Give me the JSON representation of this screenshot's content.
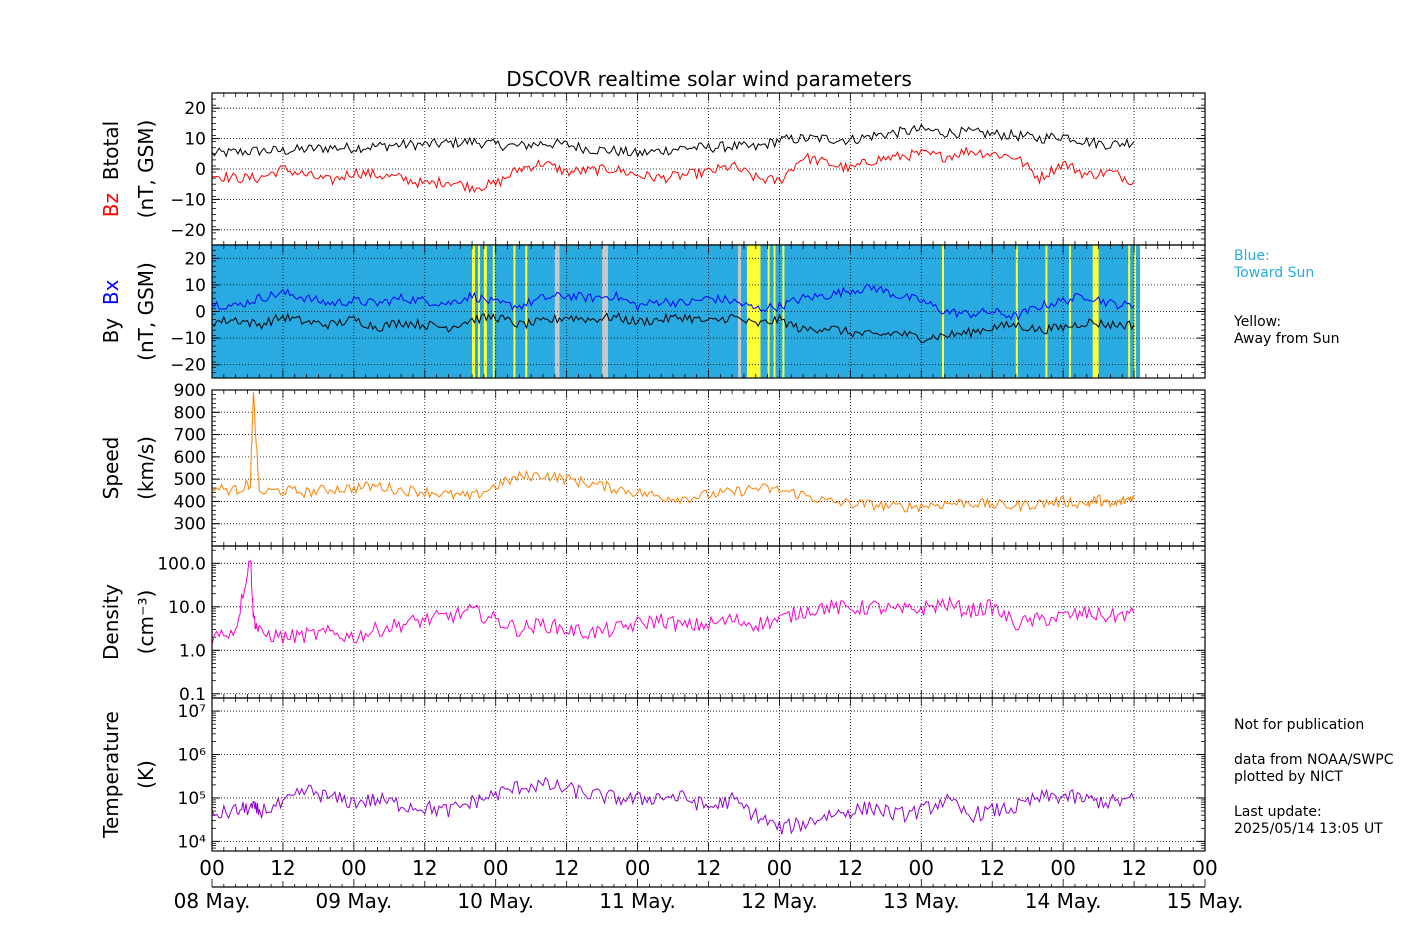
{
  "chart_data": {
    "title": "DSCOVR realtime solar wind parameters",
    "type": "line",
    "x_axis": {
      "tick_hours": [
        "00",
        "12",
        "00",
        "12",
        "00",
        "12",
        "00",
        "12",
        "00",
        "12",
        "00",
        "12",
        "00",
        "12",
        "00"
      ],
      "day_labels": [
        "08 May.",
        "09 May.",
        "10 May.",
        "11 May.",
        "12 May.",
        "13 May.",
        "14 May.",
        "15 May."
      ],
      "range_hours": [
        0,
        168
      ],
      "grid": true
    },
    "panels": [
      {
        "id": "bz_btotal",
        "ylabel_parts": [
          {
            "text": "Bz",
            "color": "#ff0000"
          },
          {
            "text": "Btotal",
            "color": "#000000"
          }
        ],
        "ylabel_units": "(nT, GSM)",
        "ylim": [
          -25,
          25
        ],
        "yticks": [
          20,
          10,
          0,
          -10,
          -20
        ],
        "ytick_labels": [
          "20",
          "10",
          "0",
          "−10",
          "−20"
        ],
        "series": [
          {
            "name": "Btotal",
            "color": "#000000",
            "x": [
              0,
              4,
              8,
              12,
              16,
              20,
              24,
              28,
              32,
              36,
              40,
              44,
              48,
              52,
              56,
              60,
              64,
              68,
              72,
              76,
              80,
              84,
              88,
              92,
              96,
              100,
              104,
              108,
              112,
              116,
              120,
              124,
              128,
              132,
              136,
              140,
              144,
              148,
              152,
              156
            ],
            "y": [
              5,
              5.5,
              6,
              6,
              6.5,
              7,
              7,
              7.5,
              8,
              8,
              8.5,
              9,
              8,
              7.5,
              8.5,
              8,
              6.5,
              6,
              5,
              6,
              7,
              7,
              7.5,
              7,
              9.5,
              10,
              10,
              9.5,
              11,
              12,
              13,
              12,
              12,
              11.5,
              11,
              10,
              11,
              9,
              8,
              9
            ]
          },
          {
            "name": "Bz",
            "color": "#ff0000",
            "x": [
              0,
              4,
              8,
              12,
              16,
              20,
              24,
              28,
              32,
              36,
              40,
              44,
              48,
              52,
              56,
              60,
              64,
              68,
              72,
              76,
              80,
              84,
              88,
              92,
              96,
              100,
              104,
              108,
              112,
              116,
              120,
              124,
              128,
              132,
              136,
              140,
              144,
              148,
              152,
              156
            ],
            "y": [
              -2,
              -3,
              -3,
              0,
              -2,
              -4,
              -1,
              -2,
              -3,
              -5,
              -4,
              -6,
              -5,
              0,
              2,
              -1,
              -0.5,
              0,
              -2,
              -3,
              -2,
              -1,
              1,
              -3,
              -4,
              4,
              2,
              0,
              3,
              4,
              5,
              4,
              6,
              5,
              4,
              -3,
              2,
              -2,
              -1,
              -4
            ]
          }
        ]
      },
      {
        "id": "by_bx",
        "ylabel_parts": [
          {
            "text": "By",
            "color": "#000000"
          },
          {
            "text": "Bx",
            "color": "#0000ff"
          }
        ],
        "ylabel_units": "(nT, GSM)",
        "ylim": [
          -25,
          25
        ],
        "yticks": [
          20,
          10,
          0,
          -10,
          -20
        ],
        "ytick_labels": [
          "20",
          "10",
          "0",
          "−10",
          "−20"
        ],
        "background": {
          "blue_color": "#29abe2",
          "yellow_color": "#ffff33",
          "gray_color": "#c8c8c8",
          "blue_range_hours": [
            0,
            157
          ],
          "yellow_bands_hours": [
            [
              44,
              44.5
            ],
            [
              45,
              45.3
            ],
            [
              46,
              46.5
            ],
            [
              47.5,
              47.8
            ],
            [
              51,
              51.3
            ],
            [
              53,
              53.3
            ],
            [
              90.5,
              92.8
            ],
            [
              94,
              94.3
            ],
            [
              95,
              95.3
            ],
            [
              96.5,
              96.8
            ],
            [
              123.5,
              123.8
            ],
            [
              136,
              136.3
            ],
            [
              141,
              141.3
            ],
            [
              145,
              145.3
            ],
            [
              149,
              150
            ],
            [
              155,
              155.3
            ],
            [
              156,
              156.3
            ]
          ],
          "gray_bands_hours": [
            [
              58,
              58.8
            ],
            [
              66,
              67
            ],
            [
              89,
              89.5
            ]
          ]
        },
        "legend_text": [
          {
            "text": "Blue:\nToward Sun",
            "color": "#29abe2"
          },
          {
            "text": "Yellow:\nAway from Sun",
            "color": "#000000"
          }
        ],
        "series": [
          {
            "name": "Bx",
            "color": "#0000ff",
            "x": [
              0,
              4,
              8,
              12,
              16,
              20,
              24,
              28,
              32,
              36,
              40,
              44,
              48,
              52,
              56,
              60,
              64,
              68,
              72,
              76,
              80,
              84,
              88,
              92,
              96,
              100,
              104,
              108,
              112,
              116,
              120,
              124,
              128,
              132,
              136,
              140,
              144,
              148,
              152,
              156
            ],
            "y": [
              3,
              2,
              5,
              7,
              5,
              3,
              4,
              3,
              5,
              4,
              3,
              6,
              3,
              2,
              5,
              6,
              5,
              6,
              2,
              4,
              3,
              5,
              4,
              1,
              2,
              5,
              6,
              8,
              9,
              6,
              4,
              0,
              -1,
              0,
              -2,
              2,
              4,
              6,
              3,
              2
            ]
          },
          {
            "name": "By",
            "color": "#000000",
            "x": [
              0,
              4,
              8,
              12,
              16,
              20,
              24,
              28,
              32,
              36,
              40,
              44,
              48,
              52,
              56,
              60,
              64,
              68,
              72,
              76,
              80,
              84,
              88,
              92,
              96,
              100,
              104,
              108,
              112,
              116,
              120,
              124,
              128,
              132,
              136,
              140,
              144,
              148,
              152,
              156
            ],
            "y": [
              -4,
              -3,
              -5,
              -2,
              -4,
              -5,
              -3,
              -6,
              -4,
              -5,
              -6,
              -3,
              -2,
              -5,
              -4,
              -2,
              -3,
              -2,
              -4,
              -3,
              -2,
              -4,
              -2,
              -5,
              -3,
              -7,
              -6,
              -8,
              -9,
              -8,
              -10,
              -9,
              -8,
              -6,
              -5,
              -7,
              -6,
              -4,
              -5,
              -5
            ]
          }
        ]
      },
      {
        "id": "speed",
        "ylabel_parts": [
          {
            "text": "Speed",
            "color": "#000000"
          }
        ],
        "ylabel_units": "(km/s)",
        "ylim": [
          200,
          900
        ],
        "yticks": [
          900,
          800,
          700,
          600,
          500,
          400,
          300
        ],
        "ytick_labels": [
          "900",
          "800",
          "700",
          "600",
          "500",
          "400",
          "300"
        ],
        "series": [
          {
            "name": "Speed",
            "color": "#ff8000",
            "x": [
              0,
              4,
              6.5,
              7,
              8,
              12,
              16,
              20,
              24,
              28,
              32,
              36,
              40,
              44,
              48,
              52,
              56,
              60,
              64,
              68,
              72,
              76,
              80,
              84,
              88,
              92,
              96,
              100,
              104,
              108,
              112,
              116,
              120,
              124,
              128,
              132,
              136,
              140,
              144,
              148,
              150,
              152,
              154,
              156
            ],
            "y": [
              460,
              450,
              480,
              880,
              440,
              450,
              440,
              455,
              460,
              470,
              450,
              445,
              430,
              420,
              470,
              510,
              520,
              500,
              480,
              460,
              440,
              420,
              415,
              430,
              440,
              460,
              450,
              430,
              400,
              390,
              385,
              375,
              380,
              390,
              395,
              385,
              380,
              390,
              400,
              390,
              410,
              380,
              400,
              420
            ]
          }
        ]
      },
      {
        "id": "density",
        "ylabel_parts": [
          {
            "text": "Density",
            "color": "#000000"
          }
        ],
        "ylabel_units": "(cm⁻³)",
        "scale": "log",
        "ylim": [
          0.08,
          250
        ],
        "yticks": [
          100,
          10,
          1,
          0.1
        ],
        "ytick_labels": [
          "100.0",
          "10.0",
          "1.0",
          "0.1"
        ],
        "series": [
          {
            "name": "Density",
            "color": "#ff00cc",
            "x": [
              0,
              4,
              6.5,
              7,
              8,
              12,
              16,
              20,
              24,
              28,
              32,
              36,
              40,
              44,
              48,
              52,
              56,
              60,
              64,
              68,
              72,
              76,
              80,
              84,
              88,
              92,
              96,
              100,
              104,
              108,
              112,
              116,
              120,
              124,
              128,
              132,
              136,
              140,
              144,
              148,
              152,
              156
            ],
            "y": [
              2,
              3,
              150,
              6,
              2.5,
              2,
              2.2,
              2.5,
              2,
              3,
              4,
              5,
              6,
              8,
              5,
              3,
              4,
              3,
              2.5,
              3,
              4,
              5,
              3.5,
              4,
              5,
              4,
              5,
              8,
              10,
              9,
              10,
              8,
              9,
              12,
              8,
              10,
              4,
              5,
              6,
              7,
              6,
              7
            ]
          }
        ]
      },
      {
        "id": "temperature",
        "ylabel_parts": [
          {
            "text": "Temperature",
            "color": "#000000"
          }
        ],
        "ylabel_units": "(K)",
        "scale": "log",
        "ylim": [
          6000,
          20000000
        ],
        "yticks": [
          10000000,
          1000000,
          100000,
          10000
        ],
        "ytick_labels": [
          "10⁷",
          "10⁶",
          "10⁵",
          "10⁴"
        ],
        "series": [
          {
            "name": "Temperature",
            "color": "#9400d3",
            "x": [
              0,
              4,
              6.5,
              8,
              12,
              16,
              20,
              24,
              28,
              32,
              36,
              40,
              44,
              48,
              52,
              56,
              60,
              64,
              68,
              72,
              76,
              80,
              84,
              88,
              92,
              96,
              100,
              104,
              108,
              112,
              116,
              120,
              124,
              128,
              132,
              136,
              140,
              144,
              148,
              152,
              156
            ],
            "y": [
              40000,
              50000,
              60000,
              50000,
              70000,
              150000,
              100000,
              80000,
              90000,
              70000,
              60000,
              50000,
              80000,
              120000,
              180000,
              200000,
              160000,
              120000,
              100000,
              90000,
              110000,
              100000,
              60000,
              90000,
              40000,
              20000,
              25000,
              40000,
              50000,
              60000,
              40000,
              50000,
              90000,
              40000,
              50000,
              60000,
              100000,
              110000,
              90000,
              80000,
              90000
            ]
          }
        ]
      }
    ]
  },
  "notes": {
    "not_for_publication": "Not for publication",
    "data_source": "data from NOAA/SWPC\nplotted by NICT",
    "last_update": "Last update:\n2025/05/14 13:05 UT"
  }
}
